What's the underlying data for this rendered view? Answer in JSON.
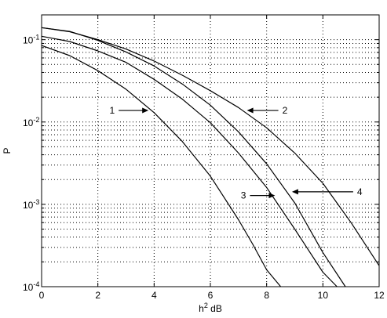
{
  "chart_data": {
    "type": "line",
    "title": "",
    "xlabel": "h² dB",
    "ylabel": "P",
    "xlim": [
      0,
      12
    ],
    "ylim": [
      0.0001,
      0.2
    ],
    "yscale": "log",
    "grid": true,
    "grid_style": "dotted",
    "xticks": [
      0,
      2,
      4,
      6,
      8,
      10,
      12
    ],
    "xtick_labels": [
      "0",
      "2",
      "4",
      "6",
      "8",
      "10",
      "12"
    ],
    "yticks": [
      0.0001,
      0.001,
      0.01,
      0.1
    ],
    "ytick_labels": [
      {
        "base": "10",
        "exp": "-4"
      },
      {
        "base": "10",
        "exp": "-3"
      },
      {
        "base": "10",
        "exp": "-2"
      },
      {
        "base": "10",
        "exp": "-1"
      }
    ],
    "series": [
      {
        "x": [
          0,
          1,
          2,
          3,
          4,
          5,
          6,
          7,
          7.5,
          8,
          8.5
        ],
        "y": [
          0.085,
          0.064,
          0.042,
          0.025,
          0.013,
          0.0058,
          0.0022,
          0.00065,
          0.00033,
          0.00016,
          0.0001
        ]
      },
      {
        "x": [
          0,
          1,
          2,
          3,
          4,
          5,
          6,
          7,
          8,
          9,
          10,
          11,
          12
        ],
        "y": [
          0.14,
          0.125,
          0.1,
          0.077,
          0.055,
          0.037,
          0.024,
          0.015,
          0.0085,
          0.0042,
          0.0018,
          0.0006,
          0.00018
        ]
      },
      {
        "x": [
          0,
          1,
          2,
          3,
          4,
          5,
          6,
          7,
          8,
          9,
          10,
          10.5
        ],
        "y": [
          0.11,
          0.095,
          0.073,
          0.053,
          0.033,
          0.019,
          0.0098,
          0.0042,
          0.0016,
          0.0005,
          0.00015,
          0.0001
        ]
      },
      {
        "x": [
          0,
          1,
          2,
          3,
          4,
          5,
          6,
          7,
          8,
          9,
          10,
          10.8
        ],
        "y": [
          0.14,
          0.126,
          0.098,
          0.071,
          0.048,
          0.029,
          0.016,
          0.0076,
          0.0031,
          0.00104,
          0.00026,
          0.0001
        ]
      }
    ],
    "annotations": [
      {
        "label": "1",
        "target": [
          3.8,
          0.0138
        ]
      },
      {
        "label": "2",
        "target": [
          7.3,
          0.0138
        ]
      },
      {
        "label": "3",
        "target": [
          8.3,
          0.00128
        ]
      },
      {
        "label": "4",
        "target": [
          8.9,
          0.00142
        ]
      }
    ]
  }
}
